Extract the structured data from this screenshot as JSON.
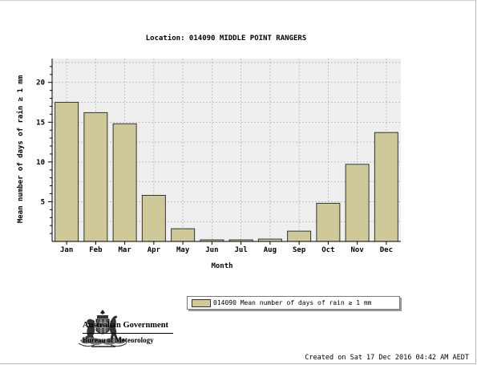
{
  "chart_data": {
    "type": "bar",
    "title": "Location: 014090 MIDDLE POINT RANGERS",
    "xlabel": "Month",
    "ylabel": "Mean number of days of rain ≥ 1 mm",
    "categories": [
      "Jan",
      "Feb",
      "Mar",
      "Apr",
      "May",
      "Jun",
      "Jul",
      "Aug",
      "Sep",
      "Oct",
      "Nov",
      "Dec"
    ],
    "series": [
      {
        "name": "014090 Mean number of days of rain ≥ 1 mm",
        "values": [
          17.5,
          16.2,
          14.8,
          5.8,
          1.6,
          0.2,
          0.2,
          0.3,
          1.3,
          4.8,
          9.7,
          13.7
        ]
      }
    ],
    "ylim": [
      0,
      23
    ],
    "yticks": [
      5,
      10,
      15,
      20
    ],
    "grid": true,
    "legend_position": "bottom-right"
  },
  "colors": {
    "bar_fill": "#cfc99a",
    "bar_stroke": "#333333",
    "plot_bg": "#efefef",
    "grid": "#b5b5b5"
  },
  "branding": {
    "line1": "Australian Government",
    "line2": "Bureau of Meteorology",
    "logo_icon": "coat-of-arms-icon"
  },
  "footer": {
    "created": "Created on Sat 17 Dec 2016 04:42 AM AEDT"
  }
}
